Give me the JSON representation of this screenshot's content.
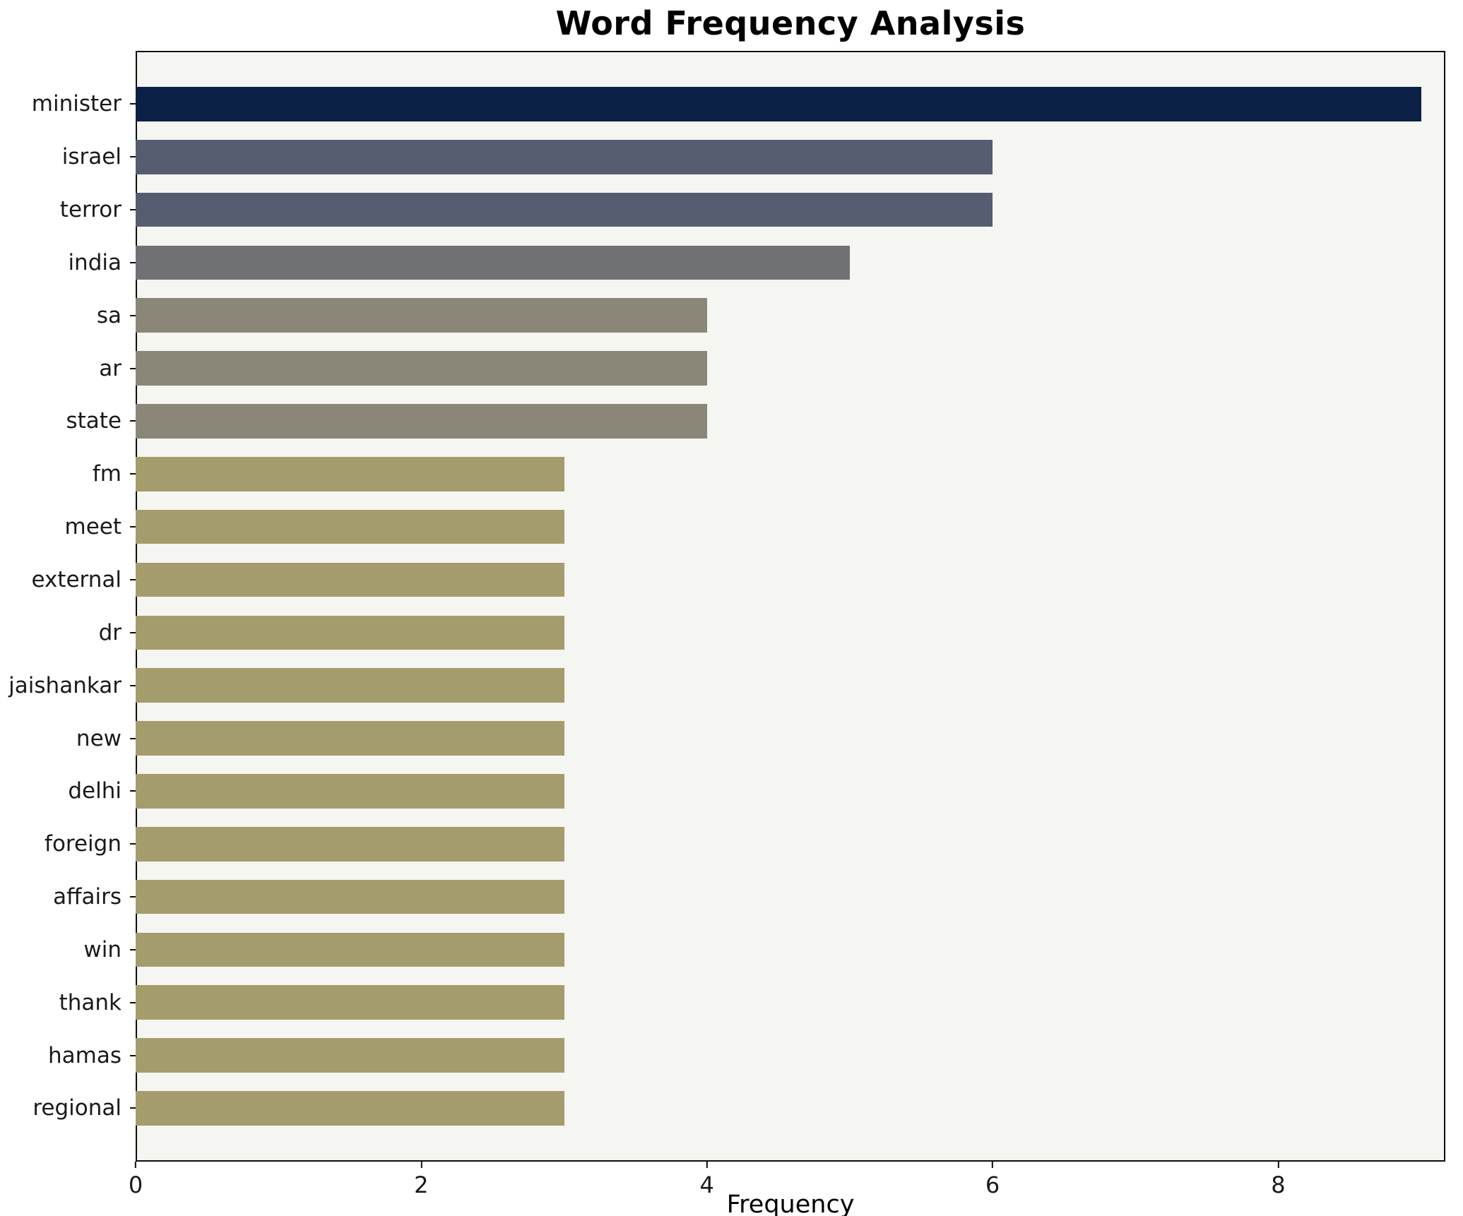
{
  "chart_data": {
    "type": "bar",
    "orientation": "horizontal",
    "title": "Word Frequency Analysis",
    "xlabel": "Frequency",
    "ylabel": "",
    "xlim": [
      0,
      9.17
    ],
    "xticks": [
      0,
      2,
      4,
      6,
      8
    ],
    "grid": false,
    "legend": null,
    "plot_bg": "#f5f5f2",
    "fig_bg": "#ffffff",
    "categories": [
      "minister",
      "israel",
      "terror",
      "india",
      "sa",
      "ar",
      "state",
      "fm",
      "meet",
      "external",
      "dr",
      "jaishankar",
      "new",
      "delhi",
      "foreign",
      "affairs",
      "win",
      "thank",
      "hamas",
      "regional"
    ],
    "values": [
      9,
      6,
      6,
      5,
      4,
      4,
      4,
      3,
      3,
      3,
      3,
      3,
      3,
      3,
      3,
      3,
      3,
      3,
      3,
      3
    ],
    "bar_colors": [
      "#0b2045",
      "#565d71",
      "#565d71",
      "#6f7174",
      "#8a8778",
      "#8a8778",
      "#8a8778",
      "#a59c6d",
      "#a59c6d",
      "#a59c6d",
      "#a59c6d",
      "#a59c6d",
      "#a59c6d",
      "#a59c6d",
      "#a59c6d",
      "#a59c6d",
      "#a59c6d",
      "#a59c6d",
      "#a59c6d",
      "#a59c6d"
    ]
  }
}
